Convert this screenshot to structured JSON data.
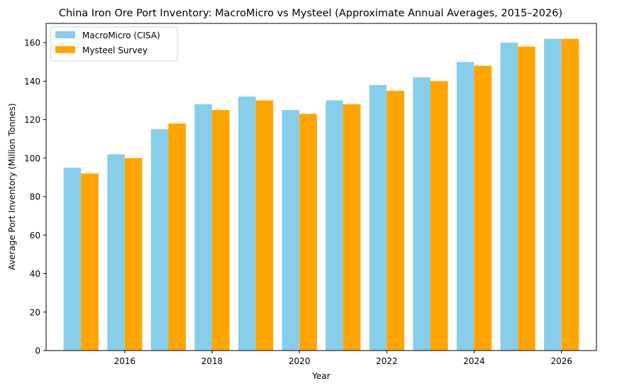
{
  "chart_data": {
    "type": "bar",
    "title": "China Iron Ore Port Inventory: MacroMicro vs Mysteel (Approximate Annual Averages, 2015–2026)",
    "xlabel": "Year",
    "ylabel": "Average Port Inventory (Million Tonnes)",
    "categories": [
      "2015",
      "2016",
      "2017",
      "2018",
      "2019",
      "2020",
      "2021",
      "2022",
      "2023",
      "2024",
      "2025",
      "2026"
    ],
    "x": [
      2015,
      2016,
      2017,
      2018,
      2019,
      2020,
      2021,
      2022,
      2023,
      2024,
      2025,
      2026
    ],
    "series": [
      {
        "name": "MacroMicro (CISA)",
        "color": "#87CEEB",
        "values": [
          95,
          102,
          115,
          128,
          132,
          125,
          130,
          138,
          142,
          150,
          160,
          162
        ]
      },
      {
        "name": "Mysteel Survey",
        "color": "#FFA500",
        "values": [
          92,
          100,
          118,
          125,
          130,
          123,
          128,
          135,
          140,
          148,
          158,
          162
        ]
      }
    ],
    "xlim": [
      2014.2,
      2026.8
    ],
    "ylim": [
      0,
      170
    ],
    "xticks": [
      2016,
      2018,
      2020,
      2022,
      2024,
      2026
    ],
    "yticks": [
      0,
      20,
      40,
      60,
      80,
      100,
      120,
      140,
      160
    ],
    "legend": {
      "placement": "top-left",
      "entries": [
        "MacroMicro (CISA)",
        "Mysteel Survey"
      ]
    },
    "grid": false
  }
}
